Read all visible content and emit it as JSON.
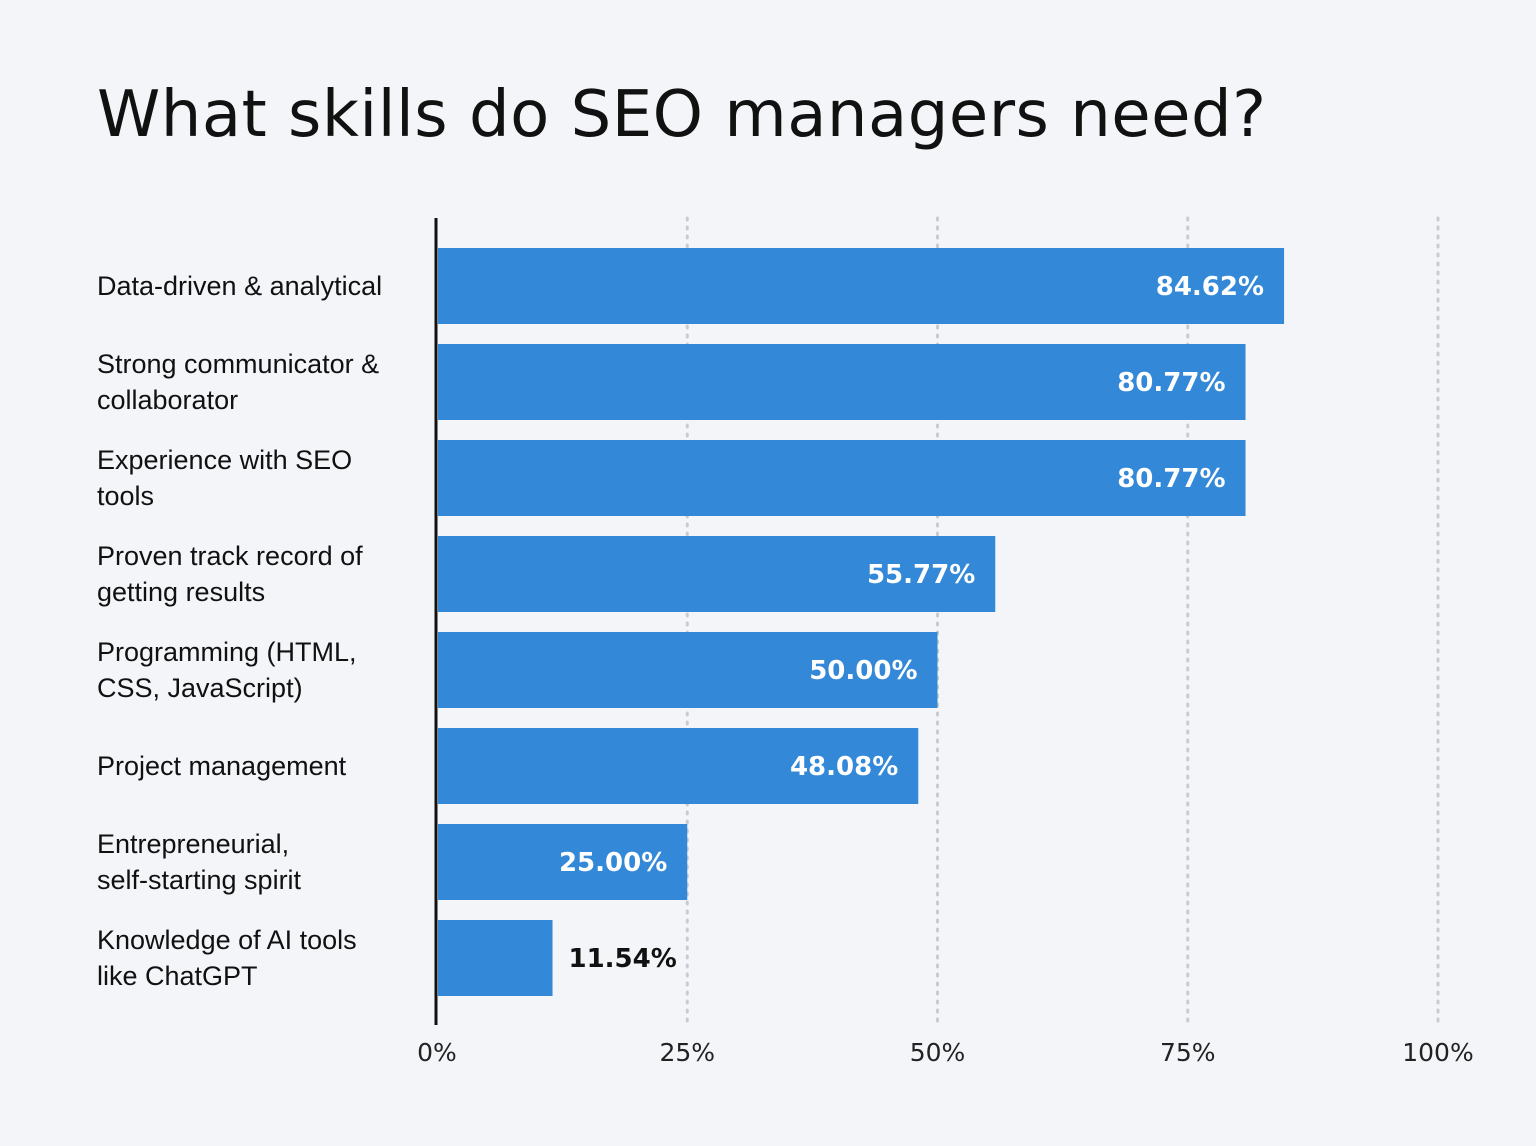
{
  "chart_data": {
    "type": "bar",
    "orientation": "horizontal",
    "title": "What skills do SEO managers need?",
    "categories": [
      [
        "Data-driven & analytical"
      ],
      [
        "Strong communicator &",
        "collaborator"
      ],
      [
        "Experience with SEO",
        "tools"
      ],
      [
        "Proven track record of",
        "getting results"
      ],
      [
        "Programming (HTML,",
        "CSS, JavaScript)"
      ],
      [
        "Project management"
      ],
      [
        "Entrepreneurial,",
        "self-starting spirit"
      ],
      [
        "Knowledge of AI tools",
        "like ChatGPT"
      ]
    ],
    "values": [
      84.62,
      80.77,
      80.77,
      55.77,
      50.0,
      48.08,
      25.0,
      11.54
    ],
    "value_labels": [
      "84.62%",
      "80.77%",
      "80.77%",
      "55.77%",
      "50.00%",
      "48.08%",
      "25.00%",
      "11.54%"
    ],
    "xlim": [
      0,
      100
    ],
    "xticks": [
      0,
      25,
      50,
      75,
      100
    ],
    "xtick_labels": [
      "0%",
      "25%",
      "50%",
      "75%",
      "100%"
    ],
    "grid": "vertical dotted",
    "bar_color": "#3388d8",
    "inside_label_color": "#ffffff",
    "outside_label_color": "#111111",
    "axis_color": "#111111",
    "grid_color": "#c8ccd2"
  }
}
